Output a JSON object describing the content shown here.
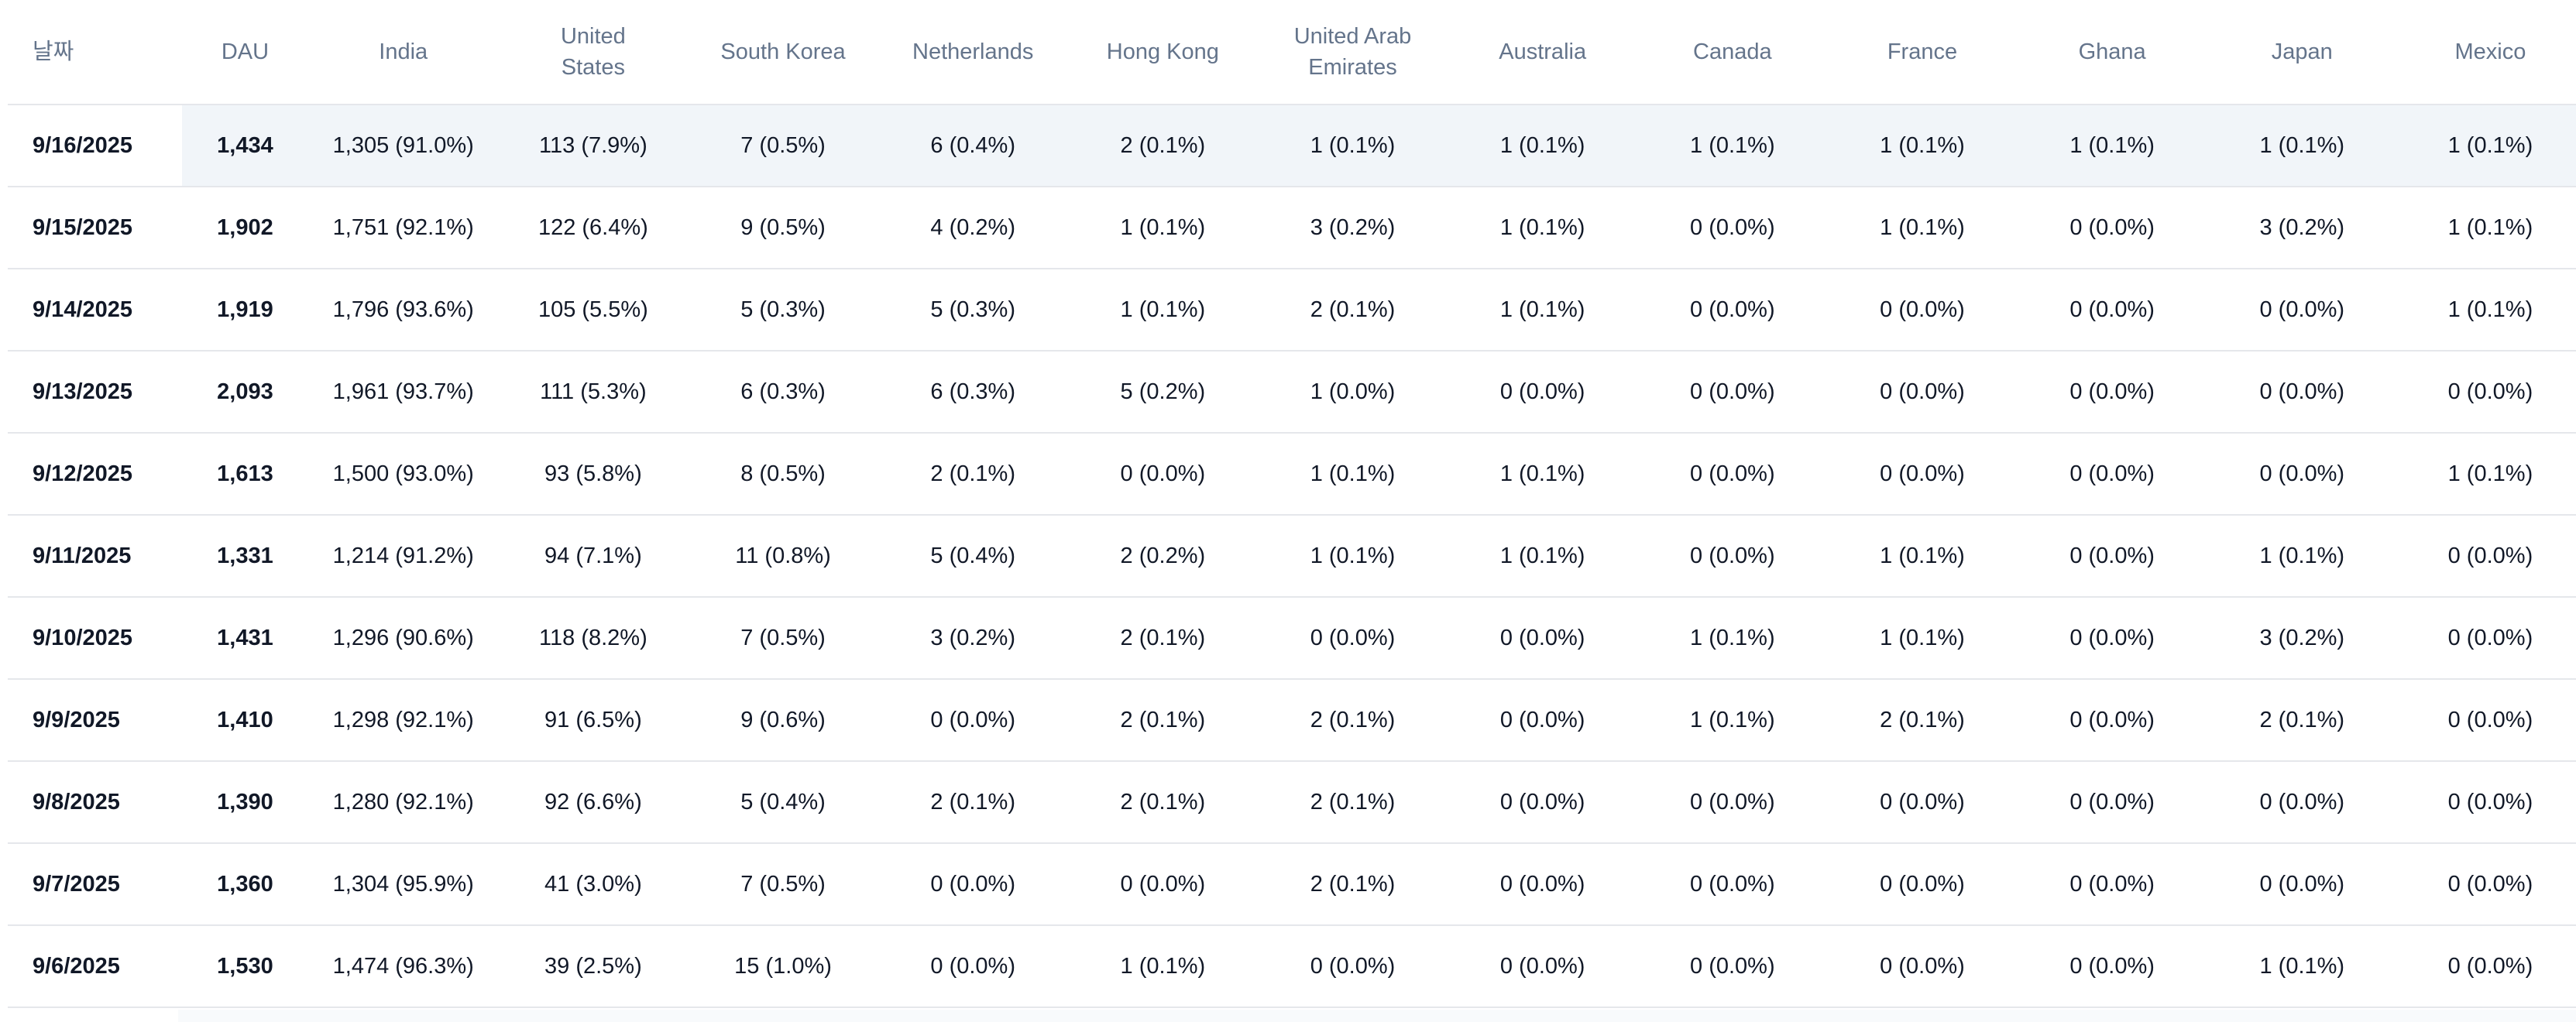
{
  "table": {
    "headers": {
      "date": "날짜",
      "dau": "DAU",
      "india": "India",
      "united_states": "United States",
      "south_korea": "South Korea",
      "netherlands": "Netherlands",
      "hong_kong": "Hong Kong",
      "uae": "United Arab Emirates",
      "australia": "Australia",
      "canada": "Canada",
      "france": "France",
      "ghana": "Ghana",
      "japan": "Japan",
      "mexico": "Mexico"
    },
    "rows": [
      {
        "date": "9/16/2025",
        "dau": "1,434",
        "india": "1,305 (91.0%)",
        "united_states": "113 (7.9%)",
        "south_korea": "7 (0.5%)",
        "netherlands": "6 (0.4%)",
        "hong_kong": "2 (0.1%)",
        "uae": "1 (0.1%)",
        "australia": "1 (0.1%)",
        "canada": "1 (0.1%)",
        "france": "1 (0.1%)",
        "ghana": "1 (0.1%)",
        "japan": "1 (0.1%)",
        "mexico": "1 (0.1%)"
      },
      {
        "date": "9/15/2025",
        "dau": "1,902",
        "india": "1,751 (92.1%)",
        "united_states": "122 (6.4%)",
        "south_korea": "9 (0.5%)",
        "netherlands": "4 (0.2%)",
        "hong_kong": "1 (0.1%)",
        "uae": "3 (0.2%)",
        "australia": "1 (0.1%)",
        "canada": "0 (0.0%)",
        "france": "1 (0.1%)",
        "ghana": "0 (0.0%)",
        "japan": "3 (0.2%)",
        "mexico": "1 (0.1%)"
      },
      {
        "date": "9/14/2025",
        "dau": "1,919",
        "india": "1,796 (93.6%)",
        "united_states": "105 (5.5%)",
        "south_korea": "5 (0.3%)",
        "netherlands": "5 (0.3%)",
        "hong_kong": "1 (0.1%)",
        "uae": "2 (0.1%)",
        "australia": "1 (0.1%)",
        "canada": "0 (0.0%)",
        "france": "0 (0.0%)",
        "ghana": "0 (0.0%)",
        "japan": "0 (0.0%)",
        "mexico": "1 (0.1%)"
      },
      {
        "date": "9/13/2025",
        "dau": "2,093",
        "india": "1,961 (93.7%)",
        "united_states": "111 (5.3%)",
        "south_korea": "6 (0.3%)",
        "netherlands": "6 (0.3%)",
        "hong_kong": "5 (0.2%)",
        "uae": "1 (0.0%)",
        "australia": "0 (0.0%)",
        "canada": "0 (0.0%)",
        "france": "0 (0.0%)",
        "ghana": "0 (0.0%)",
        "japan": "0 (0.0%)",
        "mexico": "0 (0.0%)"
      },
      {
        "date": "9/12/2025",
        "dau": "1,613",
        "india": "1,500 (93.0%)",
        "united_states": "93 (5.8%)",
        "south_korea": "8 (0.5%)",
        "netherlands": "2 (0.1%)",
        "hong_kong": "0 (0.0%)",
        "uae": "1 (0.1%)",
        "australia": "1 (0.1%)",
        "canada": "0 (0.0%)",
        "france": "0 (0.0%)",
        "ghana": "0 (0.0%)",
        "japan": "0 (0.0%)",
        "mexico": "1 (0.1%)"
      },
      {
        "date": "9/11/2025",
        "dau": "1,331",
        "india": "1,214 (91.2%)",
        "united_states": "94 (7.1%)",
        "south_korea": "11 (0.8%)",
        "netherlands": "5 (0.4%)",
        "hong_kong": "2 (0.2%)",
        "uae": "1 (0.1%)",
        "australia": "1 (0.1%)",
        "canada": "0 (0.0%)",
        "france": "1 (0.1%)",
        "ghana": "0 (0.0%)",
        "japan": "1 (0.1%)",
        "mexico": "0 (0.0%)"
      },
      {
        "date": "9/10/2025",
        "dau": "1,431",
        "india": "1,296 (90.6%)",
        "united_states": "118 (8.2%)",
        "south_korea": "7 (0.5%)",
        "netherlands": "3 (0.2%)",
        "hong_kong": "2 (0.1%)",
        "uae": "0 (0.0%)",
        "australia": "0 (0.0%)",
        "canada": "1 (0.1%)",
        "france": "1 (0.1%)",
        "ghana": "0 (0.0%)",
        "japan": "3 (0.2%)",
        "mexico": "0 (0.0%)"
      },
      {
        "date": "9/9/2025",
        "dau": "1,410",
        "india": "1,298 (92.1%)",
        "united_states": "91 (6.5%)",
        "south_korea": "9 (0.6%)",
        "netherlands": "0 (0.0%)",
        "hong_kong": "2 (0.1%)",
        "uae": "2 (0.1%)",
        "australia": "0 (0.0%)",
        "canada": "1 (0.1%)",
        "france": "2 (0.1%)",
        "ghana": "0 (0.0%)",
        "japan": "2 (0.1%)",
        "mexico": "0 (0.0%)"
      },
      {
        "date": "9/8/2025",
        "dau": "1,390",
        "india": "1,280 (92.1%)",
        "united_states": "92 (6.6%)",
        "south_korea": "5 (0.4%)",
        "netherlands": "2 (0.1%)",
        "hong_kong": "2 (0.1%)",
        "uae": "2 (0.1%)",
        "australia": "0 (0.0%)",
        "canada": "0 (0.0%)",
        "france": "0 (0.0%)",
        "ghana": "0 (0.0%)",
        "japan": "0 (0.0%)",
        "mexico": "0 (0.0%)"
      },
      {
        "date": "9/7/2025",
        "dau": "1,360",
        "india": "1,304 (95.9%)",
        "united_states": "41 (3.0%)",
        "south_korea": "7 (0.5%)",
        "netherlands": "0 (0.0%)",
        "hong_kong": "0 (0.0%)",
        "uae": "2 (0.1%)",
        "australia": "0 (0.0%)",
        "canada": "0 (0.0%)",
        "france": "0 (0.0%)",
        "ghana": "0 (0.0%)",
        "japan": "0 (0.0%)",
        "mexico": "0 (0.0%)"
      },
      {
        "date": "9/6/2025",
        "dau": "1,530",
        "india": "1,474 (96.3%)",
        "united_states": "39 (2.5%)",
        "south_korea": "15 (1.0%)",
        "netherlands": "0 (0.0%)",
        "hong_kong": "1 (0.1%)",
        "uae": "0 (0.0%)",
        "australia": "0 (0.0%)",
        "canada": "0 (0.0%)",
        "france": "0 (0.0%)",
        "ghana": "0 (0.0%)",
        "japan": "1 (0.1%)",
        "mexico": "0 (0.0%)"
      }
    ]
  }
}
